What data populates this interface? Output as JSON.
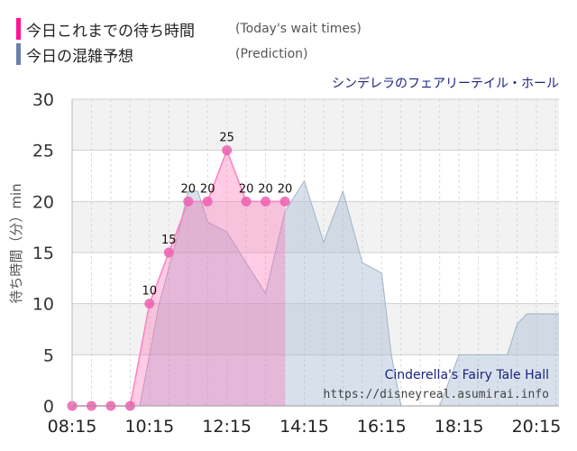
{
  "legend": {
    "today": {
      "label": "今日これまでの待ち時間",
      "sub": "(Today's wait times)",
      "color": "#ff1493"
    },
    "prediction": {
      "label": "今日の混雑予想",
      "sub": "(Prediction)",
      "color": "#6b82a8"
    }
  },
  "attraction_jp": "シンデレラのフェアリーテイル・ホール",
  "chart_data": {
    "type": "area",
    "ylabel": "待ち時間（分）min",
    "ylim": [
      0,
      30
    ],
    "yticks": [
      0,
      5,
      10,
      15,
      20,
      25,
      30
    ],
    "xlim": [
      "08:15",
      "20:50"
    ],
    "xticks": [
      "08:15",
      "10:15",
      "12:15",
      "14:15",
      "16:15",
      "18:15",
      "20:15"
    ],
    "grid": true,
    "series": [
      {
        "name": "今日これまでの待ち時間",
        "color": "#ff69b4",
        "points": [
          [
            "08:15",
            0
          ],
          [
            "08:45",
            0
          ],
          [
            "09:15",
            0
          ],
          [
            "09:45",
            0
          ],
          [
            "10:15",
            10
          ],
          [
            "10:45",
            15
          ],
          [
            "11:15",
            20
          ],
          [
            "11:45",
            20
          ],
          [
            "12:15",
            25
          ],
          [
            "12:45",
            20
          ],
          [
            "13:15",
            20
          ],
          [
            "13:45",
            20
          ]
        ],
        "labels": [
          "",
          "",
          "",
          "",
          "10",
          "15",
          "20",
          "20",
          "25",
          "20",
          "20",
          "20"
        ]
      },
      {
        "name": "今日の混雑予想",
        "color": "#a9bdd2",
        "points": [
          [
            "08:15",
            0
          ],
          [
            "09:45",
            0
          ],
          [
            "10:00",
            0
          ],
          [
            "10:30",
            10
          ],
          [
            "11:00",
            17
          ],
          [
            "11:15",
            21
          ],
          [
            "11:30",
            21
          ],
          [
            "11:45",
            18
          ],
          [
            "12:15",
            17
          ],
          [
            "12:45",
            14
          ],
          [
            "13:15",
            11
          ],
          [
            "13:45",
            19
          ],
          [
            "14:15",
            22
          ],
          [
            "14:45",
            16
          ],
          [
            "15:15",
            21
          ],
          [
            "15:45",
            14
          ],
          [
            "16:15",
            13
          ],
          [
            "16:30",
            5
          ],
          [
            "16:45",
            0
          ],
          [
            "17:45",
            0
          ],
          [
            "18:15",
            5
          ],
          [
            "19:15",
            5
          ],
          [
            "19:30",
            5
          ],
          [
            "19:45",
            8
          ],
          [
            "20:00",
            9
          ],
          [
            "20:30",
            9
          ],
          [
            "20:50",
            9
          ]
        ]
      }
    ],
    "annotations": [
      "Cinderella's Fairy Tale Hall",
      "https://disneyreal.asumirai.info"
    ]
  }
}
